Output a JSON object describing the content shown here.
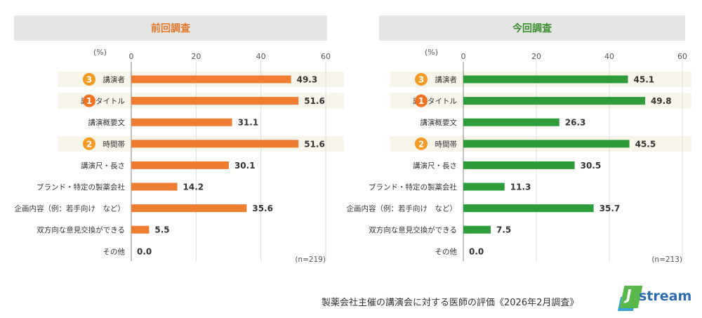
{
  "panels": {
    "left": {
      "title": "前回調査",
      "n_label": "(n=219)",
      "bar_color": "#ee7d31"
    },
    "right": {
      "title": "今回調査",
      "n_label": "(n=213)",
      "bar_color": "#2f9c3a"
    }
  },
  "unit_label": "(%)",
  "caption": "製薬会社主催の講演会に対する医師の評価《2026年2月調査》",
  "logo": {
    "text": "stream",
    "letter": "J"
  },
  "rank_color": "#f29a21",
  "chart_data": [
    {
      "type": "bar",
      "orientation": "horizontal",
      "title": "前回調査",
      "categories": [
        "講演者",
        "講演タイトル",
        "講演概要文",
        "時間帯",
        "講演尺・長さ",
        "ブランド・特定の製薬会社",
        "企画内容（例：若手向け　など）",
        "双方向な意見交換ができる",
        "その他"
      ],
      "values": [
        49.3,
        51.6,
        31.1,
        51.6,
        30.1,
        14.2,
        35.6,
        5.5,
        0.0
      ],
      "ranks": [
        "3",
        "1",
        "",
        "2",
        "",
        "",
        "",
        "",
        ""
      ],
      "xlim": [
        0,
        60
      ],
      "ticks": [
        0,
        20,
        40,
        60
      ],
      "grid": true
    },
    {
      "type": "bar",
      "orientation": "horizontal",
      "title": "今回調査",
      "categories": [
        "講演者",
        "講演タイトル",
        "講演概要文",
        "時間帯",
        "講演尺・長さ",
        "ブランド・特定の製薬会社",
        "企画内容（例：若手向け　など）",
        "双方向な意見交換ができる",
        "その他"
      ],
      "values": [
        45.1,
        49.8,
        26.3,
        45.5,
        30.5,
        11.3,
        35.7,
        7.5,
        0.0
      ],
      "ranks": [
        "3",
        "1",
        "",
        "2",
        "",
        "",
        "",
        "",
        ""
      ],
      "xlim": [
        0,
        60
      ],
      "ticks": [
        0,
        20,
        40,
        60
      ],
      "grid": true
    }
  ]
}
